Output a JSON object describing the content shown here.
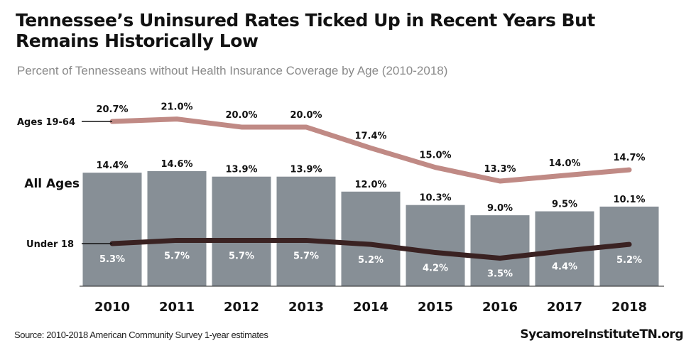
{
  "title": "Tennessee’s Uninsured Rates Ticked Up in Recent Years But Remains Historically Low",
  "subtitle": "Percent of Tennesseans without Health Insurance Coverage by Age (2010-2018)",
  "source": "Source: 2010-2018 American Community Survey 1-year estimates",
  "brand": "SycamoreInstituteTN.org",
  "chart_data": {
    "type": "bar+line",
    "categories": [
      "2010",
      "2011",
      "2012",
      "2013",
      "2014",
      "2015",
      "2016",
      "2017",
      "2018"
    ],
    "series": [
      {
        "name": "All Ages",
        "type": "bar",
        "values": [
          14.4,
          14.6,
          13.9,
          13.9,
          12.0,
          10.3,
          9.0,
          9.5,
          10.1
        ],
        "labels": [
          "14.4%",
          "14.6%",
          "13.9%",
          "13.9%",
          "12.0%",
          "10.3%",
          "9.0%",
          "9.5%",
          "10.1%"
        ],
        "color": "#878f96"
      },
      {
        "name": "Ages 19-64",
        "type": "line",
        "values": [
          20.7,
          21.0,
          20.0,
          20.0,
          17.4,
          15.0,
          13.3,
          14.0,
          14.7
        ],
        "labels": [
          "20.7%",
          "21.0%",
          "20.0%",
          "20.0%",
          "17.4%",
          "15.0%",
          "13.3%",
          "14.0%",
          "14.7%"
        ],
        "color": "#c08a85"
      },
      {
        "name": "Under 18",
        "type": "line",
        "values": [
          5.3,
          5.7,
          5.7,
          5.7,
          5.2,
          4.2,
          3.5,
          4.4,
          5.2
        ],
        "labels": [
          "5.3%",
          "5.7%",
          "5.7%",
          "5.7%",
          "5.2%",
          "4.2%",
          "3.5%",
          "4.4%",
          "5.2%"
        ],
        "color": "#3a2222"
      }
    ],
    "grid": false
  }
}
